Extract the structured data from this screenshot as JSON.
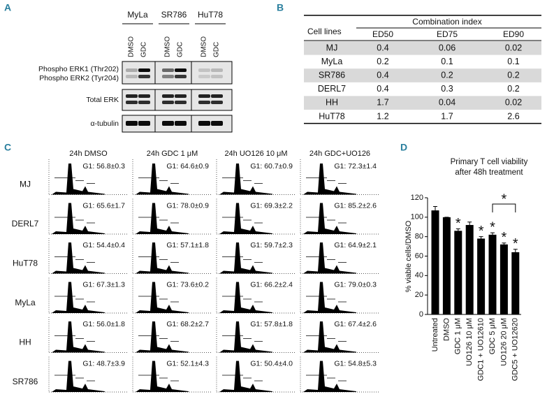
{
  "panel_a": {
    "label": "A",
    "groups": [
      "MyLa",
      "SR786",
      "HuT78"
    ],
    "lanes": [
      "DMSO",
      "GDC",
      "DMSO",
      "GDC",
      "DMSO",
      "GDC"
    ],
    "rows": [
      "Phospho ERK1 (Thr202)",
      "Phospho ERK2 (Tyr204)",
      "Total ERK",
      "α-tubulin"
    ]
  },
  "panel_b": {
    "label": "B",
    "table": {
      "header": "Combination index",
      "row_header": "Cell lines",
      "columns": [
        "ED50",
        "ED75",
        "ED90"
      ],
      "rows": [
        [
          "MJ",
          "0.4",
          "0.06",
          "0.02"
        ],
        [
          "MyLa",
          "0.2",
          "0.1",
          "0.1"
        ],
        [
          "SR786",
          "0.4",
          "0.2",
          "0.2"
        ],
        [
          "DERL7",
          "0.4",
          "0.3",
          "0.2"
        ],
        [
          "HH",
          "1.7",
          "0.04",
          "0.02"
        ],
        [
          "HuT78",
          "1.2",
          "1.7",
          "2.6"
        ]
      ]
    }
  },
  "panel_c": {
    "label": "C",
    "columns": [
      "24h DMSO",
      "24h GDC 1 μM",
      "24h UO126 10 μM",
      "24h GDC+UO126"
    ],
    "rows": [
      {
        "name": "MJ",
        "g1": [
          "G1: 56.8±0.3",
          "G1: 64.6±0.9",
          "G1: 60.7±0.9",
          "G1: 72.3±1.4"
        ]
      },
      {
        "name": "DERL7",
        "g1": [
          "G1: 65.6±1.7",
          "G1: 78.0±0.9",
          "G1: 69.3±2.2",
          "G1: 85.2±2.6"
        ]
      },
      {
        "name": "HuT78",
        "g1": [
          "G1: 54.4±0.4",
          "G1: 57.1±1.8",
          "G1: 59.7±2.3",
          "G1: 64.9±2.1"
        ]
      },
      {
        "name": "MyLa",
        "g1": [
          "G1: 67.3±1.3",
          "G1: 73.6±0.2",
          "G1: 66.2±2.4",
          "G1: 79.0±0.3"
        ]
      },
      {
        "name": "HH",
        "g1": [
          "G1: 56.0±1.8",
          "G1: 68.2±2.7",
          "G1: 57.8±1.8",
          "G1: 67.4±2.6"
        ]
      },
      {
        "name": "SR786",
        "g1": [
          "G1: 48.7±3.9",
          "G1: 52.1±4.3",
          "G1: 50.4±4.0",
          "G1: 54.8±5.3"
        ]
      }
    ]
  },
  "chart_data": {
    "type": "bar",
    "label": "D",
    "title": [
      "Primary T cell viability",
      "after 48h treatment"
    ],
    "y_label": "% viable cells/DMSO",
    "categories": [
      "Untreated",
      "DMSO",
      "GDC 1 μM",
      "UO126 10 μM",
      "GDC1 + UO12610",
      "GDC 5 μM",
      "UO126 20 μM",
      "GDC5 + UO12620"
    ],
    "values": [
      107,
      100,
      86,
      92,
      78,
      82,
      72,
      64
    ],
    "errors": [
      4,
      0,
      2,
      3,
      2,
      2,
      1.5,
      3
    ],
    "significance": [
      null,
      null,
      "*",
      null,
      "*",
      "*",
      "*",
      "*"
    ],
    "bracket_label": "*",
    "color": "#000000",
    "ylim": [
      0,
      120
    ],
    "yticks": [
      0,
      20,
      40,
      60,
      80,
      100,
      120
    ]
  }
}
